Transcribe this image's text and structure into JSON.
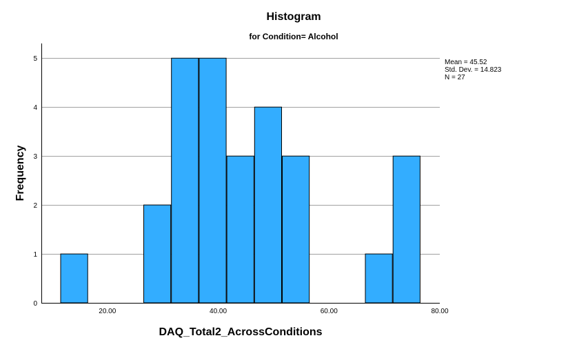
{
  "chart_data": {
    "type": "bar",
    "title": "Histogram",
    "subtitle": "for Condition= Alcohol",
    "xlabel": "DAQ_Total2_AcrossConditions",
    "ylabel": "Frequency",
    "bin_width": 5,
    "bins": [
      {
        "start": 11.5,
        "end": 16.5,
        "count": 1
      },
      {
        "start": 16.5,
        "end": 21.5,
        "count": 0
      },
      {
        "start": 21.5,
        "end": 26.5,
        "count": 0
      },
      {
        "start": 26.5,
        "end": 31.5,
        "count": 2
      },
      {
        "start": 31.5,
        "end": 36.5,
        "count": 5
      },
      {
        "start": 36.5,
        "end": 41.5,
        "count": 5
      },
      {
        "start": 41.5,
        "end": 46.5,
        "count": 3
      },
      {
        "start": 46.5,
        "end": 51.5,
        "count": 4
      },
      {
        "start": 51.5,
        "end": 56.5,
        "count": 3
      },
      {
        "start": 56.5,
        "end": 61.5,
        "count": 0
      },
      {
        "start": 61.5,
        "end": 66.5,
        "count": 0
      },
      {
        "start": 66.5,
        "end": 71.5,
        "count": 1
      },
      {
        "start": 71.5,
        "end": 76.5,
        "count": 3
      }
    ],
    "xlim": [
      8.08,
      80.0
    ],
    "ylim": [
      0,
      5.3
    ],
    "x_ticks": [
      20,
      40,
      60,
      80
    ],
    "x_tick_labels": [
      "20.00",
      "40.00",
      "60.00",
      "80.00"
    ],
    "y_ticks": [
      0,
      1,
      2,
      3,
      4,
      5
    ],
    "y_tick_labels": [
      "0",
      "1",
      "2",
      "3",
      "4",
      "5"
    ],
    "grid": "horizontal",
    "legend_position": "right",
    "stats": [
      "Mean = 45.52",
      "Std. Dev. = 14.823",
      "N = 27"
    ],
    "colors": {
      "bar_fill": "#33adff",
      "bar_stroke": "#000000",
      "grid": "#a0a0a0",
      "axis": "#000000"
    }
  }
}
